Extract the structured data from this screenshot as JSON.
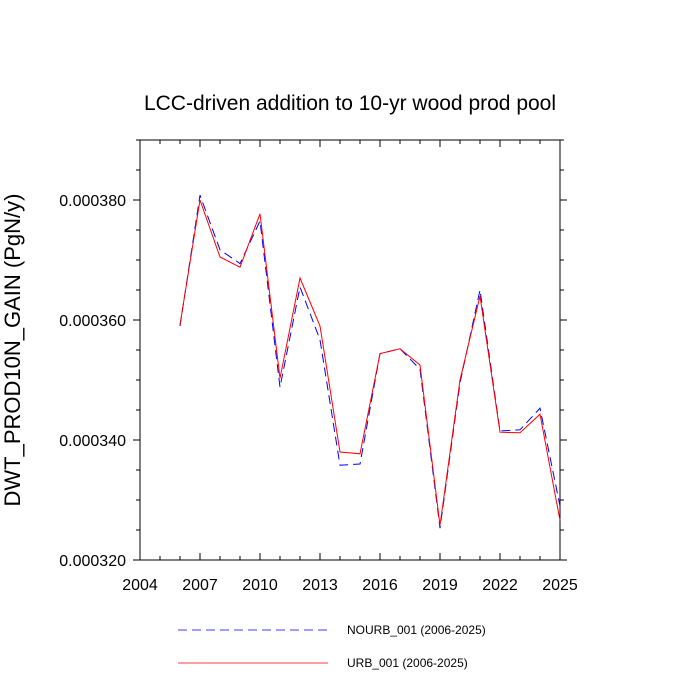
{
  "chart_data": {
    "type": "line",
    "title": "LCC-driven addition to 10-yr wood prod pool",
    "xlabel": "",
    "ylabel": "DWT_PROD10N_GAIN  (PgN/y)",
    "xlim": [
      2004,
      2025
    ],
    "ylim": [
      0.00032,
      0.00039
    ],
    "x_ticks": [
      2004,
      2007,
      2010,
      2013,
      2016,
      2019,
      2022,
      2025
    ],
    "x_tick_labels": [
      "2004",
      "2007",
      "2010",
      "2013",
      "2016",
      "2019",
      "2022",
      "2025"
    ],
    "y_ticks": [
      0.00032,
      0.00034,
      0.00036,
      0.00038
    ],
    "y_tick_labels": [
      "0.000320",
      "0.000340",
      "0.000360",
      "0.000380"
    ],
    "x": [
      2006,
      2007,
      2008,
      2009,
      2010,
      2011,
      2012,
      2013,
      2014,
      2015,
      2016,
      2017,
      2018,
      2019,
      2020,
      2021,
      2022,
      2023,
      2024,
      2025
    ],
    "series": [
      {
        "name": "NOURB_001 (2006-2025)",
        "color": "#0000ff",
        "dash": "dashed",
        "values": [
          0.000359,
          0.0003808,
          0.0003717,
          0.0003694,
          0.0003765,
          0.0003488,
          0.0003655,
          0.0003567,
          0.0003358,
          0.000336,
          0.0003544,
          0.0003552,
          0.0003518,
          0.0003253,
          0.0003495,
          0.000365,
          0.0003415,
          0.0003417,
          0.0003453,
          0.000329
        ]
      },
      {
        "name": "URB_001 (2006-2025)",
        "color": "#ff0000",
        "dash": "solid",
        "values": [
          0.0003592,
          0.00038,
          0.0003705,
          0.0003688,
          0.0003777,
          0.0003503,
          0.000367,
          0.000359,
          0.000338,
          0.0003377,
          0.0003544,
          0.0003552,
          0.0003525,
          0.0003258,
          0.00035,
          0.000364,
          0.0003413,
          0.0003412,
          0.0003443,
          0.0003266
        ]
      }
    ],
    "legend_position": "bottom"
  }
}
